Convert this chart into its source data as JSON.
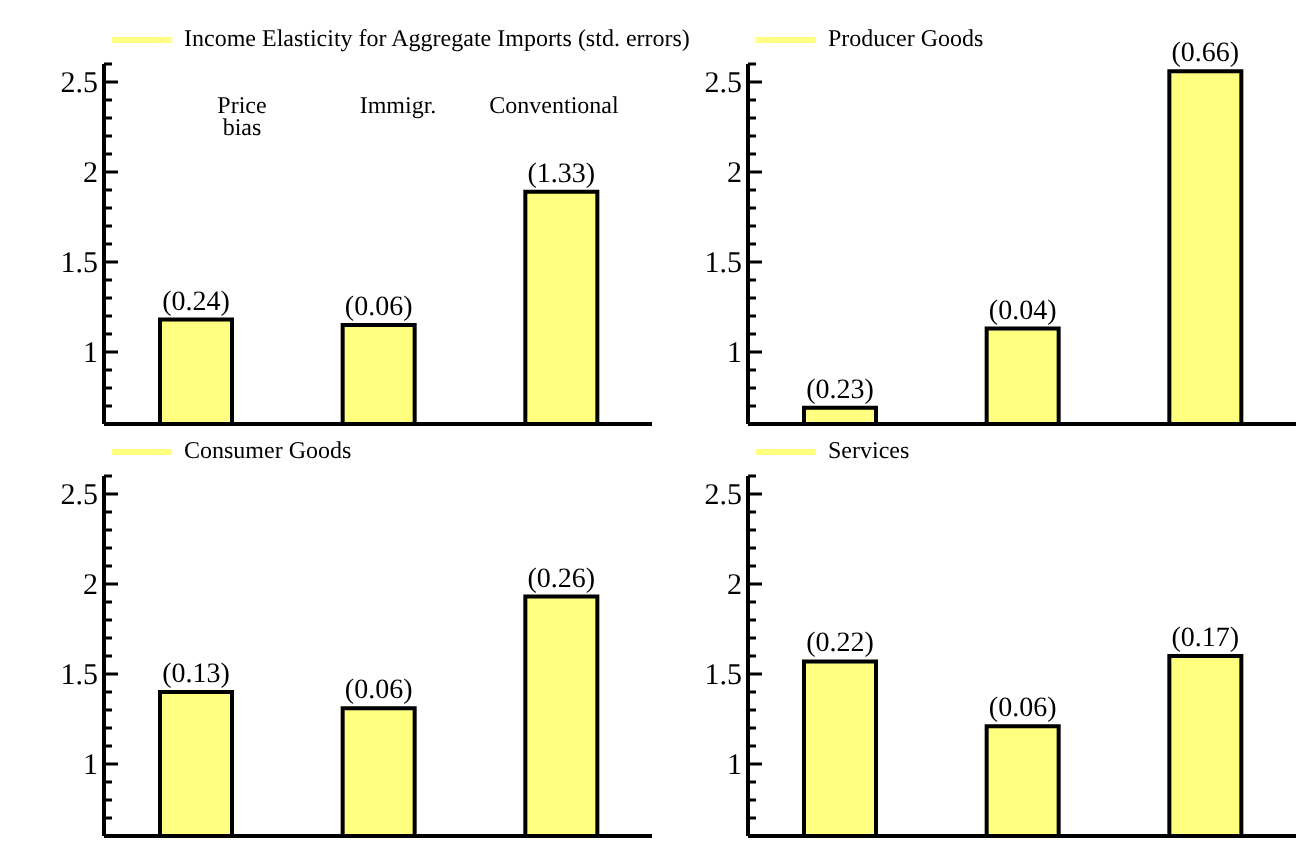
{
  "chart_data": [
    {
      "type": "bar",
      "categories": [
        "Price bias",
        "Immigr.",
        "Conventional"
      ],
      "series": [
        {
          "name": "Income Elasticity for Aggregate Imports (std. errors)",
          "color": "#ffff80",
          "values": [
            1.18,
            1.15,
            1.89
          ]
        }
      ],
      "annotations": [
        {
          "text": "(0.24)",
          "x": "Price bias",
          "y": 1.18
        },
        {
          "text": "(0.06)",
          "x": "Immigr.",
          "y": 1.15
        },
        {
          "text": "(1.33)",
          "x": "Conventional",
          "y": 1.89
        }
      ],
      "ylim": [
        0.6,
        2.6
      ],
      "yticks": [
        {
          "value": 0.6,
          "label": null
        },
        {
          "value": 0.7,
          "label": null
        },
        {
          "value": 0.8,
          "label": null
        },
        {
          "value": 0.9,
          "label": null
        },
        1,
        {
          "value": 1.1,
          "label": null
        },
        {
          "value": 1.2,
          "label": null
        },
        {
          "value": 1.3,
          "label": null
        },
        {
          "value": 1.4,
          "label": null
        },
        1.5,
        {
          "value": 1.6,
          "label": null
        },
        {
          "value": 1.7,
          "label": null
        },
        {
          "value": 1.8,
          "label": null
        },
        {
          "value": 1.9,
          "label": null
        },
        2,
        {
          "value": 2.1,
          "label": null
        },
        {
          "value": 2.2,
          "label": null
        },
        {
          "value": 2.3,
          "label": null
        },
        {
          "value": 2.4,
          "label": null
        },
        2.5,
        {
          "value": 2.6,
          "label": null
        }
      ],
      "legend": "top left",
      "grid": false
    },
    {
      "type": "bar",
      "categories": [
        null,
        null,
        null
      ],
      "series": [
        {
          "name": "Producer Goods",
          "color": "#ffff80",
          "values": [
            0.69,
            1.13,
            2.56
          ]
        }
      ],
      "annotations": [
        {
          "text": "(0.23)",
          "y": 0.69
        },
        {
          "text": "(0.04)",
          "y": 1.13
        },
        {
          "text": "(0.66)",
          "y": 2.56
        }
      ],
      "ylim": [
        0.6,
        2.6
      ],
      "yticks": [
        {
          "value": 0.6,
          "label": null
        },
        {
          "value": 0.7,
          "label": null
        },
        {
          "value": 0.8,
          "label": null
        },
        {
          "value": 0.9,
          "label": null
        },
        1,
        {
          "value": 1.1,
          "label": null
        },
        {
          "value": 1.2,
          "label": null
        },
        {
          "value": 1.3,
          "label": null
        },
        {
          "value": 1.4,
          "label": null
        },
        1.5,
        {
          "value": 1.6,
          "label": null
        },
        {
          "value": 1.7,
          "label": null
        },
        {
          "value": 1.8,
          "label": null
        },
        {
          "value": 1.9,
          "label": null
        },
        2,
        {
          "value": 2.1,
          "label": null
        },
        {
          "value": 2.2,
          "label": null
        },
        {
          "value": 2.3,
          "label": null
        },
        {
          "value": 2.4,
          "label": null
        },
        2.5,
        {
          "value": 2.6,
          "label": null
        }
      ],
      "legend": "top left",
      "grid": false
    },
    {
      "type": "bar",
      "categories": [
        null,
        null,
        null
      ],
      "series": [
        {
          "name": "Consumer Goods",
          "color": "#ffff80",
          "values": [
            1.4,
            1.31,
            1.93
          ]
        }
      ],
      "annotations": [
        {
          "text": "(0.13)",
          "y": 1.4
        },
        {
          "text": "(0.06)",
          "y": 1.31
        },
        {
          "text": "(0.26)",
          "y": 1.93
        }
      ],
      "ylim": [
        0.6,
        2.6
      ],
      "yticks": [
        {
          "value": 0.6,
          "label": null
        },
        {
          "value": 0.7,
          "label": null
        },
        {
          "value": 0.8,
          "label": null
        },
        {
          "value": 0.9,
          "label": null
        },
        1,
        {
          "value": 1.1,
          "label": null
        },
        {
          "value": 1.2,
          "label": null
        },
        {
          "value": 1.3,
          "label": null
        },
        {
          "value": 1.4,
          "label": null
        },
        1.5,
        {
          "value": 1.6,
          "label": null
        },
        {
          "value": 1.7,
          "label": null
        },
        {
          "value": 1.8,
          "label": null
        },
        {
          "value": 1.9,
          "label": null
        },
        2,
        {
          "value": 2.1,
          "label": null
        },
        {
          "value": 2.2,
          "label": null
        },
        {
          "value": 2.3,
          "label": null
        },
        {
          "value": 2.4,
          "label": null
        },
        2.5,
        {
          "value": 2.6,
          "label": null
        }
      ],
      "legend": "top left",
      "grid": false
    },
    {
      "type": "bar",
      "categories": [
        null,
        null,
        null
      ],
      "series": [
        {
          "name": "Services",
          "color": "#ffff80",
          "values": [
            1.57,
            1.21,
            1.6
          ]
        }
      ],
      "annotations": [
        {
          "text": "(0.22)",
          "y": 1.57
        },
        {
          "text": "(0.06)",
          "y": 1.21
        },
        {
          "text": "(0.17)",
          "y": 1.6
        }
      ],
      "ylim": [
        0.6,
        2.6
      ],
      "yticks": [
        {
          "value": 0.6,
          "label": null
        },
        {
          "value": 0.7,
          "label": null
        },
        {
          "value": 0.8,
          "label": null
        },
        {
          "value": 0.9,
          "label": null
        },
        1,
        {
          "value": 1.1,
          "label": null
        },
        {
          "value": 1.2,
          "label": null
        },
        {
          "value": 1.3,
          "label": null
        },
        {
          "value": 1.4,
          "label": null
        },
        1.5,
        {
          "value": 1.6,
          "label": null
        },
        {
          "value": 1.7,
          "label": null
        },
        {
          "value": 1.8,
          "label": null
        },
        {
          "value": 1.9,
          "label": null
        },
        2,
        {
          "value": 2.1,
          "label": null
        },
        {
          "value": 2.2,
          "label": null
        },
        {
          "value": 2.3,
          "label": null
        },
        {
          "value": 2.4,
          "label": null
        },
        2.5,
        {
          "value": 2.6,
          "label": null
        }
      ],
      "legend": "top left",
      "grid": false
    }
  ]
}
